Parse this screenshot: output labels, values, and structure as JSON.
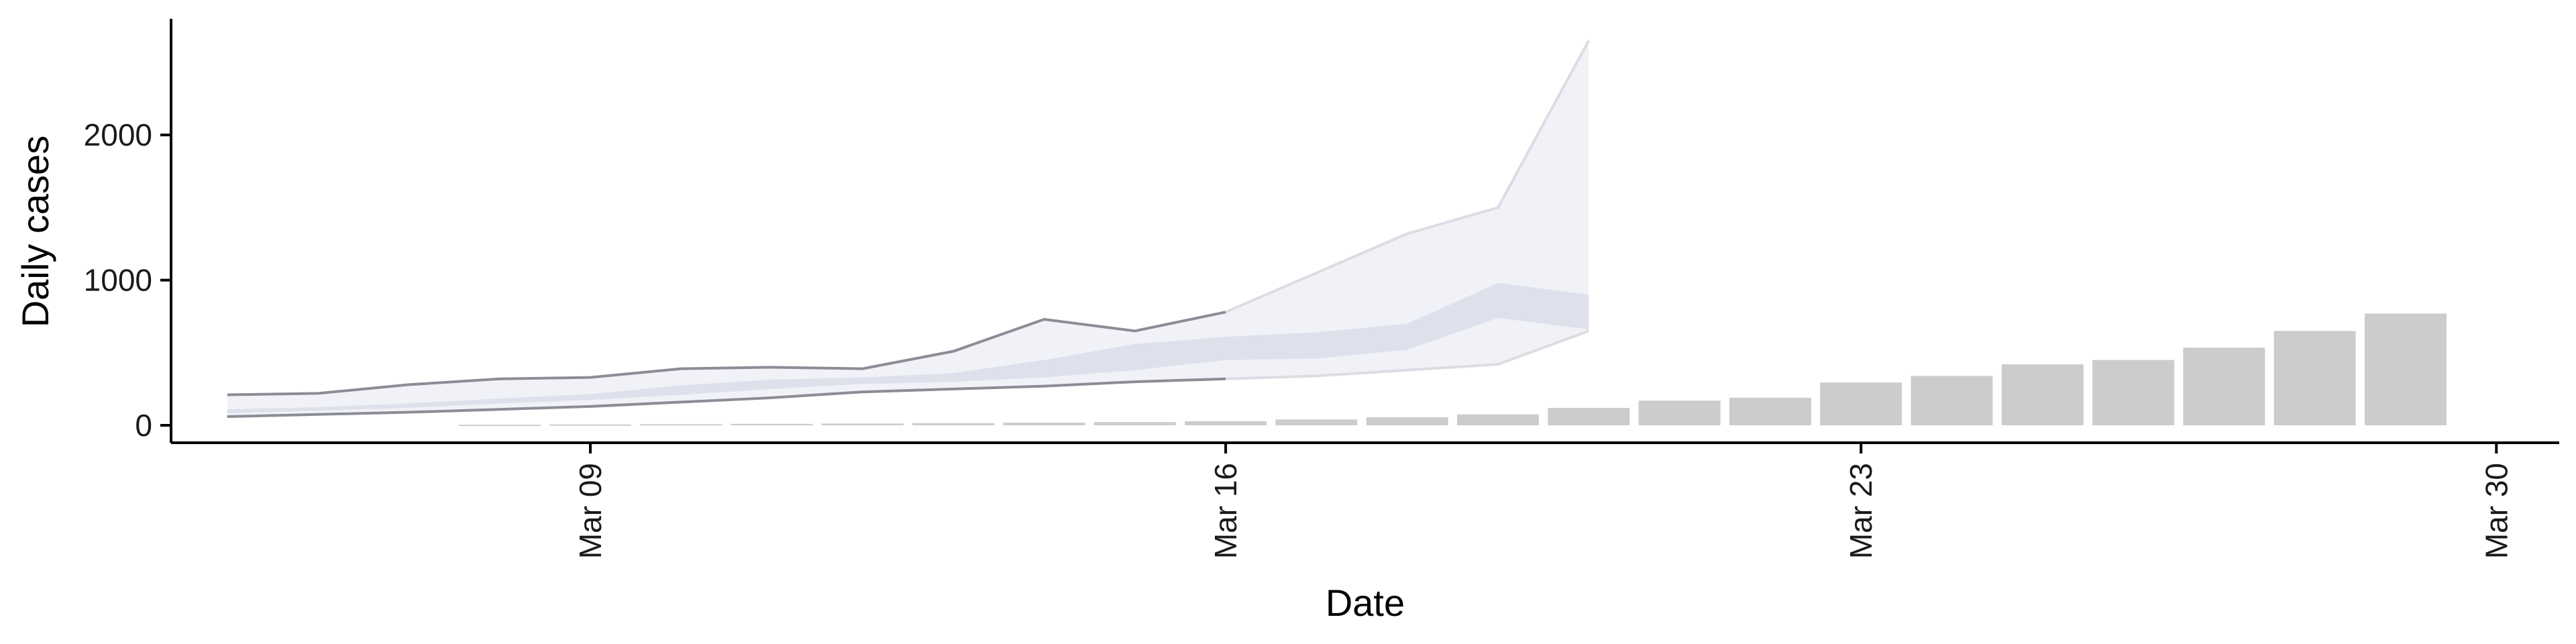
{
  "chart_data": {
    "type": "bar",
    "title": "",
    "xlabel": "Date",
    "ylabel": "Daily cases",
    "x_ticks": [
      "Mar 09",
      "Mar 16",
      "Mar 23",
      "Mar 30"
    ],
    "y_ticks": [
      "0",
      "1000",
      "2000"
    ],
    "ylim": [
      -120,
      2800
    ],
    "grid": false,
    "legend": "none",
    "bars": {
      "dates": [
        "2020-03-08",
        "2020-03-09",
        "2020-03-10",
        "2020-03-11",
        "2020-03-12",
        "2020-03-13",
        "2020-03-14",
        "2020-03-15",
        "2020-03-16",
        "2020-03-17",
        "2020-03-18",
        "2020-03-19",
        "2020-03-20",
        "2020-03-21",
        "2020-03-22",
        "2020-03-23",
        "2020-03-24",
        "2020-03-25",
        "2020-03-26",
        "2020-03-27",
        "2020-03-28",
        "2020-03-29",
        "2020-03-30"
      ],
      "values": [
        4,
        6,
        8,
        10,
        12,
        15,
        18,
        22,
        28,
        40,
        55,
        75,
        120,
        170,
        190,
        295,
        340,
        420,
        450,
        535,
        650,
        770,
        0
      ],
      "color": "#cccccc"
    },
    "bands": {
      "dates": [
        "2020-03-05",
        "2020-03-06",
        "2020-03-07",
        "2020-03-08",
        "2020-03-09",
        "2020-03-10",
        "2020-03-11",
        "2020-03-12",
        "2020-03-13",
        "2020-03-14",
        "2020-03-15",
        "2020-03-16",
        "2020-03-17",
        "2020-03-18",
        "2020-03-19",
        "2020-03-20"
      ],
      "outer_low": [
        60,
        75,
        90,
        110,
        130,
        160,
        190,
        230,
        250,
        270,
        300,
        320,
        340,
        380,
        420,
        650
      ],
      "outer_high": [
        210,
        220,
        280,
        320,
        330,
        390,
        400,
        390,
        510,
        730,
        650,
        780,
        1050,
        1320,
        1500,
        2650
      ],
      "inner_low": [
        85,
        100,
        120,
        150,
        175,
        210,
        250,
        285,
        300,
        330,
        380,
        450,
        460,
        520,
        740,
        660
      ],
      "inner_high": [
        110,
        125,
        150,
        185,
        215,
        275,
        315,
        330,
        360,
        450,
        560,
        610,
        640,
        700,
        980,
        900
      ],
      "outer_color": "#e6e8f0",
      "inner_color": "#d7dae8",
      "line_dark": "#8c8c96",
      "line_light": "#dcdce2"
    }
  }
}
